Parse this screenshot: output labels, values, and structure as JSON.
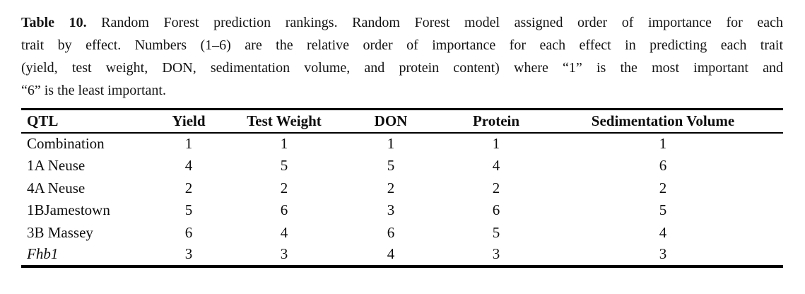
{
  "caption": {
    "label": "Table 10.",
    "line1_rest": " Random Forest prediction rankings. Random Forest model assigned order of importance for each",
    "line2": "trait by effect. Numbers (1–6) are the relative order of importance for each effect in predicting each trait",
    "line3": "(yield, test weight, DON, sedimentation volume, and protein content) where “1” is the most important and",
    "line4": "“6” is the least important."
  },
  "table": {
    "headers": [
      "QTL",
      "Yield",
      "Test Weight",
      "DON",
      "Protein",
      "Sedimentation Volume"
    ],
    "rows": [
      {
        "qtl": "Combination",
        "italic": false,
        "ranks": [
          "1",
          "1",
          "1",
          "1",
          "1"
        ]
      },
      {
        "qtl": "1A Neuse",
        "italic": false,
        "ranks": [
          "4",
          "5",
          "5",
          "4",
          "6"
        ]
      },
      {
        "qtl": "4A Neuse",
        "italic": false,
        "ranks": [
          "2",
          "2",
          "2",
          "2",
          "2"
        ]
      },
      {
        "qtl": "1BJamestown",
        "italic": false,
        "ranks": [
          "5",
          "6",
          "3",
          "6",
          "5"
        ]
      },
      {
        "qtl": "3B Massey",
        "italic": false,
        "ranks": [
          "6",
          "4",
          "6",
          "5",
          "4"
        ]
      },
      {
        "qtl": "Fhb1",
        "italic": true,
        "ranks": [
          "3",
          "3",
          "4",
          "3",
          "3"
        ]
      }
    ]
  },
  "colors": {
    "background": "#ffffff",
    "text": "#111111",
    "rule": "#000000"
  }
}
